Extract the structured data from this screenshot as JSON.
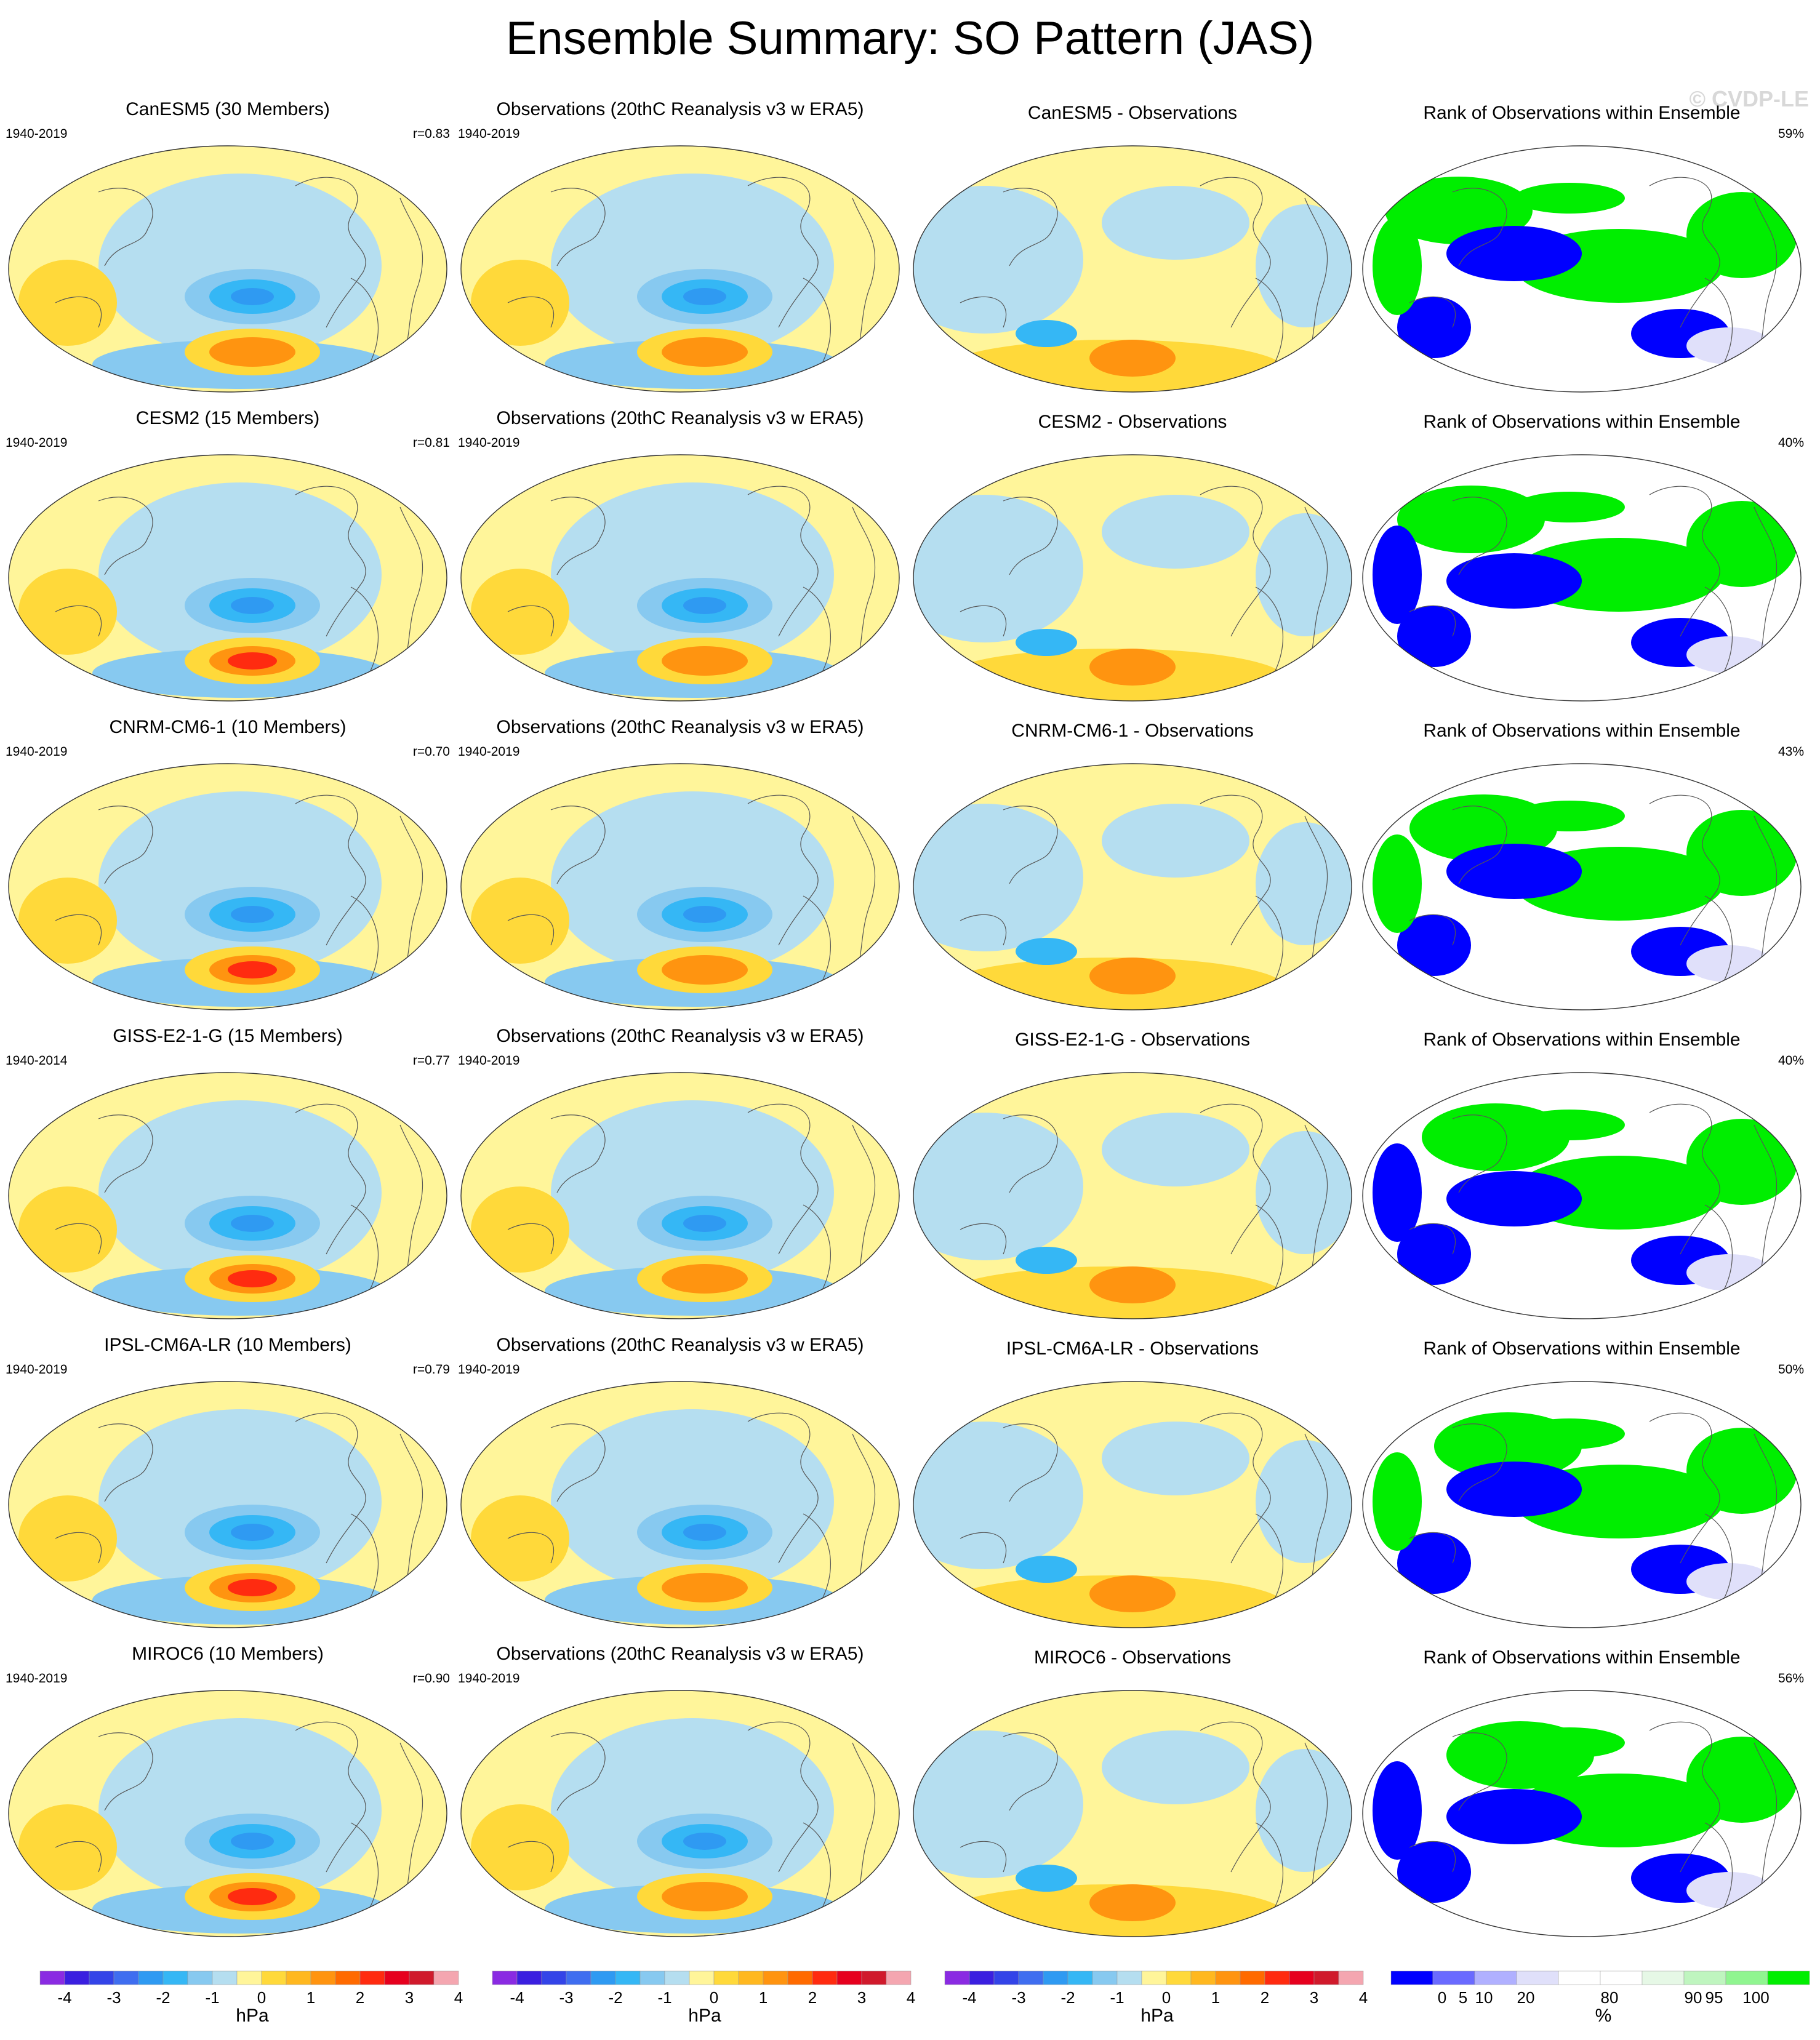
{
  "title": "Ensemble Summary: SO Pattern (JAS)",
  "watermark": "© CVDP-LE",
  "rows": [
    {
      "model": {
        "title": "CanESM5 (30 Members)",
        "years": "1940-2019",
        "stat": "r=0.83"
      },
      "obs": {
        "title": "Observations (20thC Reanalysis v3 w ERA5)",
        "years": "1940-2019"
      },
      "diff": {
        "title": "CanESM5 - Observations"
      },
      "rank": {
        "title": "Rank of Observations within Ensemble",
        "stat": "59%"
      }
    },
    {
      "model": {
        "title": "CESM2 (15 Members)",
        "years": "1940-2019",
        "stat": "r=0.81"
      },
      "obs": {
        "title": "Observations (20thC Reanalysis v3 w ERA5)",
        "years": "1940-2019"
      },
      "diff": {
        "title": "CESM2 - Observations"
      },
      "rank": {
        "title": "Rank of Observations within Ensemble",
        "stat": "40%"
      }
    },
    {
      "model": {
        "title": "CNRM-CM6-1 (10 Members)",
        "years": "1940-2019",
        "stat": "r=0.70"
      },
      "obs": {
        "title": "Observations (20thC Reanalysis v3 w ERA5)",
        "years": "1940-2019"
      },
      "diff": {
        "title": "CNRM-CM6-1 - Observations"
      },
      "rank": {
        "title": "Rank of Observations within Ensemble",
        "stat": "43%"
      }
    },
    {
      "model": {
        "title": "GISS-E2-1-G (15 Members)",
        "years": "1940-2014",
        "stat": "r=0.77"
      },
      "obs": {
        "title": "Observations (20thC Reanalysis v3 w ERA5)",
        "years": "1940-2019"
      },
      "diff": {
        "title": "GISS-E2-1-G - Observations"
      },
      "rank": {
        "title": "Rank of Observations within Ensemble",
        "stat": "40%"
      }
    },
    {
      "model": {
        "title": "IPSL-CM6A-LR (10 Members)",
        "years": "1940-2019",
        "stat": "r=0.79"
      },
      "obs": {
        "title": "Observations (20thC Reanalysis v3 w ERA5)",
        "years": "1940-2019"
      },
      "diff": {
        "title": "IPSL-CM6A-LR - Observations"
      },
      "rank": {
        "title": "Rank of Observations within Ensemble",
        "stat": "50%"
      }
    },
    {
      "model": {
        "title": "MIROC6 (10 Members)",
        "years": "1940-2019",
        "stat": "r=0.90"
      },
      "obs": {
        "title": "Observations (20thC Reanalysis v3 w ERA5)",
        "years": "1940-2019"
      },
      "diff": {
        "title": "MIROC6 - Observations"
      },
      "rank": {
        "title": "Rank of Observations within Ensemble",
        "stat": "56%"
      }
    }
  ],
  "colors": {
    "land_line": "#555555",
    "hpa_scale": [
      "#8a2be2",
      "#3a1fe0",
      "#3344e8",
      "#3f6ef0",
      "#2f9af2",
      "#35b7f5",
      "#87c9f0",
      "#b5def0",
      "#fff59a",
      "#ffd93a",
      "#ffb820",
      "#ff9410",
      "#ff6a00",
      "#ff2b10",
      "#e6001e",
      "#d01a2c",
      "#f4a6b0"
    ],
    "rank_scale": [
      "#0000ff",
      "#6a6aff",
      "#b0b0ff",
      "#e0e0fa",
      "#ffffff",
      "#ffffff",
      "#e6f8e6",
      "#bff5bf",
      "#90f590",
      "#00ee00"
    ]
  },
  "chart_data": {
    "type": "heatmap",
    "hpa_colorbar": {
      "label": "hPa",
      "tick_labels": [
        "-4",
        "-3",
        "-2",
        "-1",
        "0",
        "1",
        "2",
        "3",
        "4"
      ],
      "levels": [
        -4.5,
        -4,
        -3.5,
        -3,
        -2.5,
        -2,
        -1.5,
        -1,
        -0.5,
        0,
        0.5,
        1,
        1.5,
        2,
        2.5,
        3,
        3.5,
        4,
        4.5
      ]
    },
    "rank_colorbar": {
      "label": "%",
      "tick_labels": [
        "0",
        "5",
        "10",
        "20",
        "80",
        "90",
        "95",
        "100"
      ],
      "levels": [
        0,
        5,
        10,
        20,
        80,
        90,
        95,
        100
      ]
    }
  }
}
